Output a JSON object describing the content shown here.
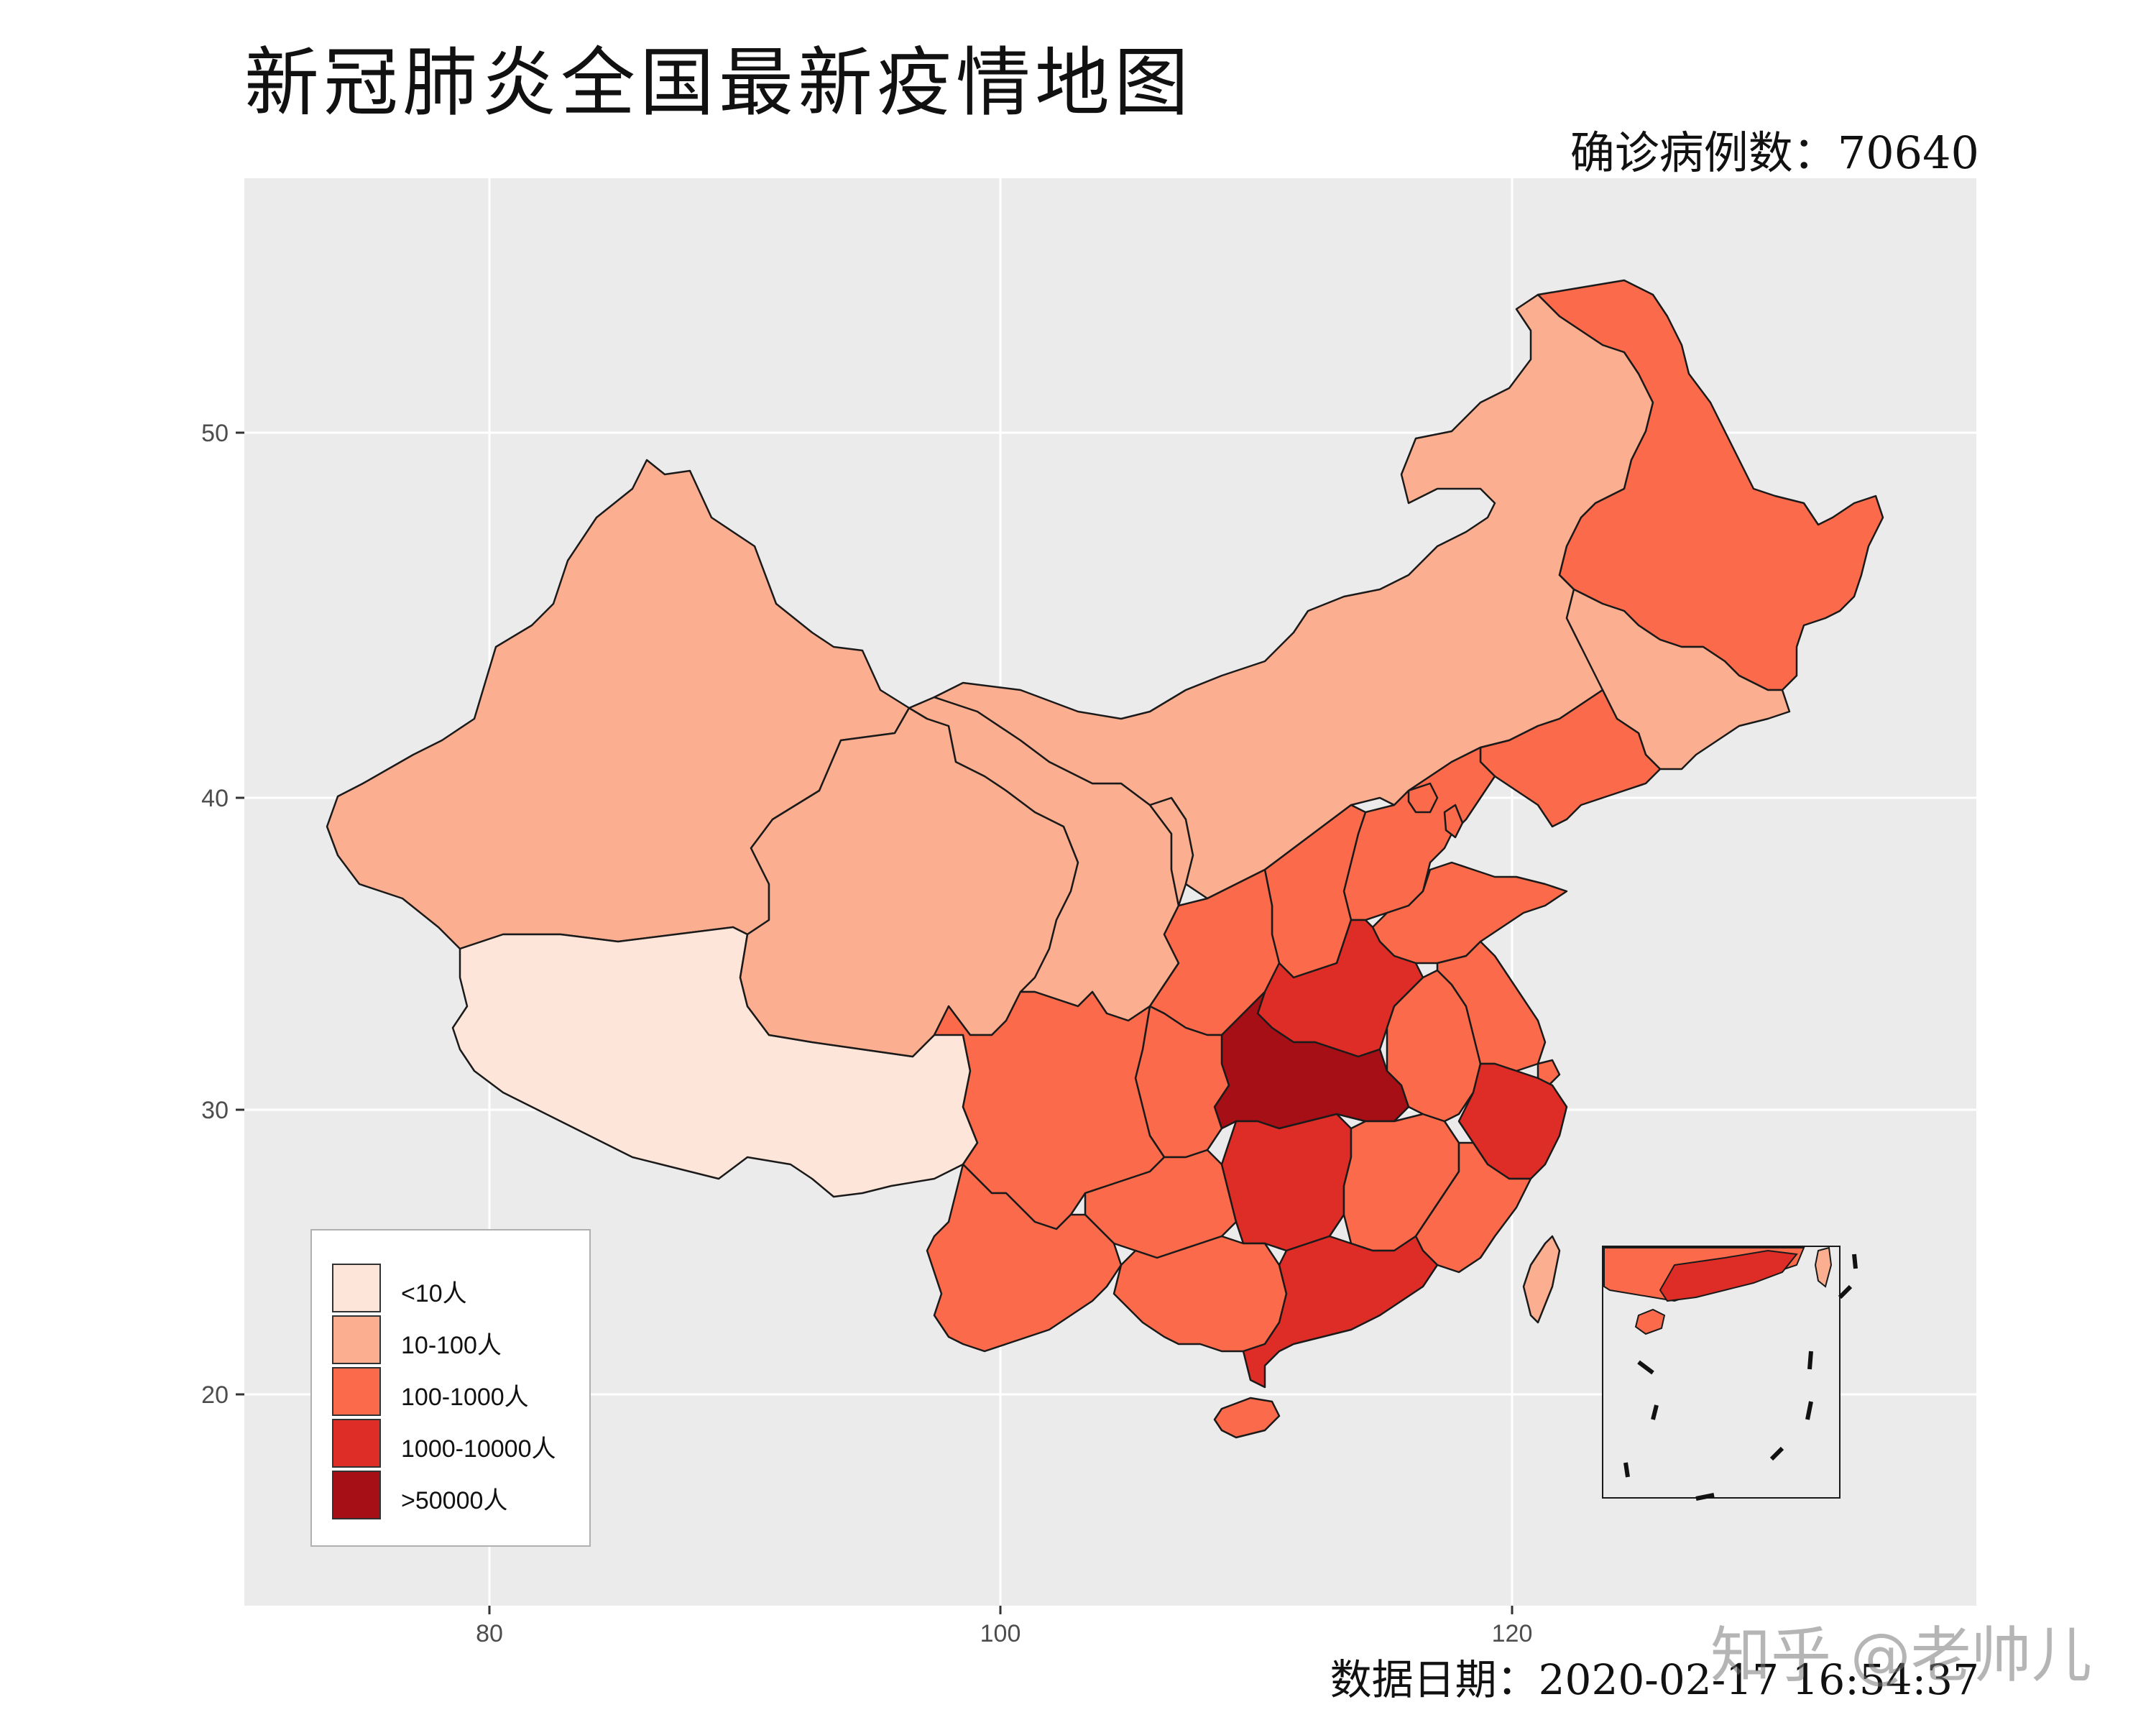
{
  "title": "新冠肺炎全国最新疫情地图",
  "subtitle": "确诊病例数：70640",
  "caption": "数据日期：2020-02-17 16:54:37",
  "watermark": "知乎 @老帅儿",
  "colors": {
    "panel": "#ebebeb",
    "grid": "#ffffff",
    "border": "#1a1a1a",
    "lt10": "#fee5d9",
    "c10_100": "#fcae91",
    "c100_1000": "#fb6a4a",
    "c1000_10000": "#de2d26",
    "gt50000": "#a50f15"
  },
  "axes": {
    "x_ticks": [
      "80",
      "100",
      "120"
    ],
    "y_ticks": [
      "50",
      "40",
      "30",
      "20"
    ]
  },
  "legend": [
    {
      "label": "<10人",
      "color": "#fee5d9"
    },
    {
      "label": "10-100人",
      "color": "#fcae91"
    },
    {
      "label": "100-1000人",
      "color": "#fb6a4a"
    },
    {
      "label": "1000-10000人",
      "color": "#de2d26"
    },
    {
      "label": ">50000人",
      "color": "#a50f15"
    }
  ],
  "regions": [
    {
      "name": "Xinjiang",
      "class": "10-100人"
    },
    {
      "name": "Tibet",
      "class": "<10人"
    },
    {
      "name": "Qinghai",
      "class": "10-100人"
    },
    {
      "name": "Gansu",
      "class": "10-100人"
    },
    {
      "name": "Ningxia",
      "class": "10-100人"
    },
    {
      "name": "Inner Mongolia",
      "class": "10-100人"
    },
    {
      "name": "Heilongjiang",
      "class": "100-1000人"
    },
    {
      "name": "Jilin",
      "class": "10-100人"
    },
    {
      "name": "Liaoning",
      "class": "100-1000人"
    },
    {
      "name": "Hebei",
      "class": "100-1000人"
    },
    {
      "name": "Beijing",
      "class": "100-1000人"
    },
    {
      "name": "Tianjin",
      "class": "100-1000人"
    },
    {
      "name": "Shanxi",
      "class": "100-1000人"
    },
    {
      "name": "Shaanxi",
      "class": "100-1000人"
    },
    {
      "name": "Shandong",
      "class": "100-1000人"
    },
    {
      "name": "Henan",
      "class": "1000-10000人"
    },
    {
      "name": "Hubei",
      "class": ">50000人"
    },
    {
      "name": "Sichuan",
      "class": "100-1000人"
    },
    {
      "name": "Chongqing",
      "class": "100-1000人"
    },
    {
      "name": "Anhui",
      "class": "100-1000人"
    },
    {
      "name": "Jiangsu",
      "class": "100-1000人"
    },
    {
      "name": "Shanghai",
      "class": "100-1000人"
    },
    {
      "name": "Zhejiang",
      "class": "1000-10000人"
    },
    {
      "name": "Hunan",
      "class": "1000-10000人"
    },
    {
      "name": "Jiangxi",
      "class": "100-1000人"
    },
    {
      "name": "Fujian",
      "class": "100-1000人"
    },
    {
      "name": "Guizhou",
      "class": "100-1000人"
    },
    {
      "name": "Yunnan",
      "class": "100-1000人"
    },
    {
      "name": "Guangxi",
      "class": "100-1000人"
    },
    {
      "name": "Guangdong",
      "class": "1000-10000人"
    },
    {
      "name": "Hainan",
      "class": "100-1000人"
    },
    {
      "name": "Taiwan",
      "class": "10-100人"
    }
  ]
}
